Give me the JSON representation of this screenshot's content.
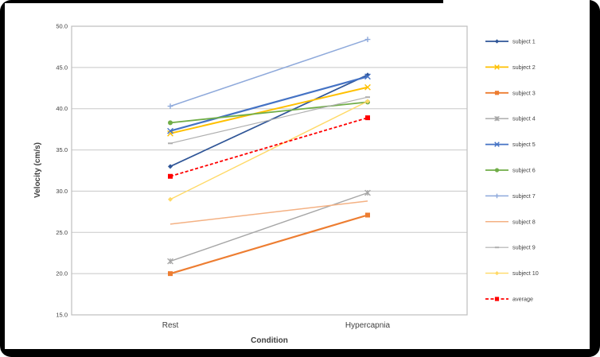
{
  "figure": {
    "background": "#ffffff",
    "frame_color": "#000000"
  },
  "chart_data": {
    "type": "line",
    "title": "",
    "xlabel": "Condition",
    "ylabel": "Velocity (cm/s)",
    "categories": [
      "Rest",
      "Hypercapnia"
    ],
    "ylim": [
      15,
      50
    ],
    "ytick_step": 5,
    "ytick_labels": [
      "50.0",
      "45.0",
      "40.0",
      "35.0",
      "30.0",
      "25.0",
      "20.0",
      "15.0"
    ],
    "grid": true,
    "legend_position": "right",
    "axis_text_color": "#404040",
    "gridline_color": "#c8c8c8",
    "plot_border_color": "#bfbfbf",
    "series": [
      {
        "name": "subject 1",
        "values": [
          33.0,
          44.1
        ],
        "color": "#2f5597",
        "marker": "diamond",
        "dash": null,
        "width": 1.7
      },
      {
        "name": "subject 2",
        "values": [
          37.0,
          42.6
        ],
        "color": "#ffc000",
        "marker": "x",
        "dash": null,
        "width": 2.0
      },
      {
        "name": "subject 3",
        "values": [
          20.0,
          27.1
        ],
        "color": "#ed7d31",
        "marker": "square",
        "dash": null,
        "width": 2.2
      },
      {
        "name": "subject 4",
        "values": [
          21.5,
          29.8
        ],
        "color": "#a6a6a6",
        "marker": "star",
        "dash": null,
        "width": 1.4
      },
      {
        "name": "subject 5",
        "values": [
          37.3,
          43.9
        ],
        "color": "#4472c4",
        "marker": "x",
        "dash": null,
        "width": 2.2
      },
      {
        "name": "subject 6",
        "values": [
          38.3,
          40.8
        ],
        "color": "#70ad47",
        "marker": "circle",
        "dash": null,
        "width": 1.8
      },
      {
        "name": "subject 7",
        "values": [
          40.3,
          48.4
        ],
        "color": "#8ea9db",
        "marker": "plus",
        "dash": null,
        "width": 1.5
      },
      {
        "name": "subject 8",
        "values": [
          26.0,
          28.8
        ],
        "color": "#f4b183",
        "marker": "none",
        "dash": null,
        "width": 1.5
      },
      {
        "name": "subject 9",
        "values": [
          35.8,
          41.4
        ],
        "color": "#afafaf",
        "marker": "dash",
        "dash": null,
        "width": 1.2
      },
      {
        "name": "subject 10",
        "values": [
          29.0,
          40.9
        ],
        "color": "#ffd966",
        "marker": "diamond",
        "dash": null,
        "width": 1.4
      },
      {
        "name": "average",
        "values": [
          31.8,
          38.9
        ],
        "color": "#ff0000",
        "marker": "square",
        "dash": "4,2.5",
        "width": 1.8
      }
    ]
  }
}
